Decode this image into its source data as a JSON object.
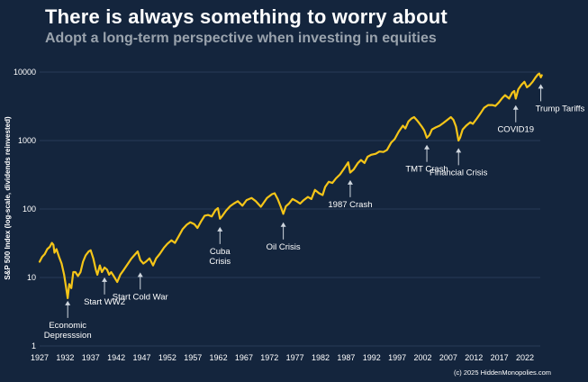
{
  "header": {
    "title": "There is always something to worry about",
    "subtitle": "Adopt a long-term perspective when investing in equities"
  },
  "copyright": "(c) 2025 HiddenMonopolies.com",
  "colors": {
    "background": "#14253d",
    "line": "#f5c518",
    "grid": "#2f4560",
    "text": "#ffffff",
    "subtitle": "#9aa3ad"
  },
  "chart_data": {
    "type": "line",
    "title": "There is always something to worry about",
    "subtitle": "Adopt a long-term perspective when investing in equities",
    "ylabel": "S&P 500 Index (log-scale, dividends reinvested)",
    "xlabel": "",
    "yscale": "log",
    "ylim": [
      1,
      10000
    ],
    "xlim": [
      1927,
      2025
    ],
    "yticks": [
      "1",
      "10",
      "100",
      "1000",
      "10000"
    ],
    "xticks": [
      "1927",
      "1932",
      "1937",
      "1942",
      "1947",
      "1952",
      "1957",
      "1962",
      "1967",
      "1972",
      "1977",
      "1982",
      "1987",
      "1992",
      "1997",
      "2002",
      "2007",
      "2012",
      "2017",
      "2022"
    ],
    "grid": "horizontal",
    "series": [
      {
        "name": "",
        "color": "#f5c518",
        "points": [
          [
            1927.0,
            17
          ],
          [
            1927.5,
            20
          ],
          [
            1928.0,
            22
          ],
          [
            1928.5,
            26
          ],
          [
            1929.0,
            28
          ],
          [
            1929.4,
            32
          ],
          [
            1929.7,
            30
          ],
          [
            1929.9,
            23
          ],
          [
            1930.3,
            26
          ],
          [
            1930.8,
            20
          ],
          [
            1931.3,
            16
          ],
          [
            1931.8,
            11
          ],
          [
            1932.2,
            7
          ],
          [
            1932.5,
            5
          ],
          [
            1932.8,
            8
          ],
          [
            1933.2,
            7
          ],
          [
            1933.6,
            12
          ],
          [
            1934.0,
            12
          ],
          [
            1934.5,
            10.5
          ],
          [
            1935.0,
            12
          ],
          [
            1935.5,
            17
          ],
          [
            1936.0,
            21
          ],
          [
            1936.6,
            24
          ],
          [
            1937.0,
            25
          ],
          [
            1937.5,
            19
          ],
          [
            1938.0,
            13
          ],
          [
            1938.3,
            11
          ],
          [
            1938.8,
            15
          ],
          [
            1939.2,
            12
          ],
          [
            1939.7,
            14
          ],
          [
            1940.2,
            13
          ],
          [
            1940.6,
            11
          ],
          [
            1941.0,
            12
          ],
          [
            1941.5,
            10.5
          ],
          [
            1942.2,
            8.6
          ],
          [
            1942.8,
            11
          ],
          [
            1943.5,
            13
          ],
          [
            1944.3,
            16
          ],
          [
            1945.0,
            19
          ],
          [
            1945.5,
            21
          ],
          [
            1946.2,
            24
          ],
          [
            1946.7,
            18
          ],
          [
            1947.3,
            16
          ],
          [
            1947.8,
            17
          ],
          [
            1948.5,
            19
          ],
          [
            1949.2,
            15
          ],
          [
            1949.8,
            19
          ],
          [
            1950.5,
            22
          ],
          [
            1951.3,
            27
          ],
          [
            1952.0,
            31
          ],
          [
            1952.8,
            35
          ],
          [
            1953.5,
            32
          ],
          [
            1954.3,
            41
          ],
          [
            1955.0,
            51
          ],
          [
            1955.8,
            59
          ],
          [
            1956.5,
            64
          ],
          [
            1957.3,
            60
          ],
          [
            1957.9,
            53
          ],
          [
            1958.6,
            66
          ],
          [
            1959.3,
            80
          ],
          [
            1960.0,
            82
          ],
          [
            1960.7,
            78
          ],
          [
            1961.4,
            96
          ],
          [
            1961.9,
            103
          ],
          [
            1962.3,
            72
          ],
          [
            1962.8,
            80
          ],
          [
            1963.5,
            95
          ],
          [
            1964.3,
            110
          ],
          [
            1965.0,
            120
          ],
          [
            1965.8,
            130
          ],
          [
            1966.7,
            112
          ],
          [
            1967.5,
            135
          ],
          [
            1968.5,
            145
          ],
          [
            1969.3,
            130
          ],
          [
            1970.3,
            108
          ],
          [
            1970.9,
            125
          ],
          [
            1971.5,
            145
          ],
          [
            1972.5,
            165
          ],
          [
            1973.0,
            170
          ],
          [
            1973.6,
            140
          ],
          [
            1974.2,
            108
          ],
          [
            1974.7,
            85
          ],
          [
            1975.2,
            110
          ],
          [
            1975.8,
            120
          ],
          [
            1976.5,
            140
          ],
          [
            1977.3,
            130
          ],
          [
            1978.0,
            120
          ],
          [
            1978.7,
            135
          ],
          [
            1979.5,
            150
          ],
          [
            1980.2,
            140
          ],
          [
            1980.9,
            190
          ],
          [
            1981.7,
            170
          ],
          [
            1982.4,
            160
          ],
          [
            1982.9,
            210
          ],
          [
            1983.6,
            250
          ],
          [
            1984.3,
            240
          ],
          [
            1985.0,
            280
          ],
          [
            1985.8,
            320
          ],
          [
            1986.5,
            380
          ],
          [
            1987.4,
            480
          ],
          [
            1987.8,
            340
          ],
          [
            1988.5,
            380
          ],
          [
            1989.3,
            470
          ],
          [
            1989.9,
            520
          ],
          [
            1990.6,
            470
          ],
          [
            1991.2,
            580
          ],
          [
            1991.9,
            620
          ],
          [
            1992.8,
            640
          ],
          [
            1993.5,
            690
          ],
          [
            1994.3,
            680
          ],
          [
            1995.0,
            730
          ],
          [
            1995.8,
            930
          ],
          [
            1996.5,
            1050
          ],
          [
            1997.3,
            1350
          ],
          [
            1998.1,
            1650
          ],
          [
            1998.6,
            1500
          ],
          [
            1999.2,
            1900
          ],
          [
            1999.8,
            2100
          ],
          [
            2000.3,
            2200
          ],
          [
            2000.8,
            2000
          ],
          [
            2001.3,
            1800
          ],
          [
            2001.8,
            1600
          ],
          [
            2002.3,
            1400
          ],
          [
            2002.8,
            1100
          ],
          [
            2003.3,
            1200
          ],
          [
            2003.8,
            1450
          ],
          [
            2004.5,
            1550
          ],
          [
            2005.3,
            1650
          ],
          [
            2006.0,
            1800
          ],
          [
            2006.8,
            2000
          ],
          [
            2007.5,
            2200
          ],
          [
            2008.0,
            2000
          ],
          [
            2008.5,
            1600
          ],
          [
            2009.0,
            1000
          ],
          [
            2009.3,
            1100
          ],
          [
            2009.8,
            1450
          ],
          [
            2010.5,
            1650
          ],
          [
            2011.3,
            1850
          ],
          [
            2011.8,
            1750
          ],
          [
            2012.6,
            2100
          ],
          [
            2013.3,
            2500
          ],
          [
            2014.0,
            3000
          ],
          [
            2014.8,
            3300
          ],
          [
            2015.6,
            3300
          ],
          [
            2016.2,
            3200
          ],
          [
            2016.9,
            3600
          ],
          [
            2017.6,
            4200
          ],
          [
            2018.1,
            4600
          ],
          [
            2018.9,
            4100
          ],
          [
            2019.5,
            5000
          ],
          [
            2019.9,
            5300
          ],
          [
            2020.2,
            4100
          ],
          [
            2020.7,
            5600
          ],
          [
            2021.3,
            6500
          ],
          [
            2021.9,
            7200
          ],
          [
            2022.4,
            6000
          ],
          [
            2022.9,
            6400
          ],
          [
            2023.5,
            7200
          ],
          [
            2024.0,
            8200
          ],
          [
            2024.5,
            9200
          ],
          [
            2024.8,
            9500
          ],
          [
            2025.1,
            8400
          ],
          [
            2025.3,
            9000
          ]
        ]
      }
    ],
    "annotations": [
      {
        "text": [
          "Economic",
          "Depresssion"
        ],
        "x": 1932.5,
        "y": 5,
        "side": "below"
      },
      {
        "text": [
          "Start WW2"
        ],
        "x": 1939.7,
        "y": 11,
        "side": "below"
      },
      {
        "text": [
          "Start Cold War"
        ],
        "x": 1946.7,
        "y": 13,
        "side": "below"
      },
      {
        "text": [
          "Cuba",
          "Crisis"
        ],
        "x": 1962.3,
        "y": 60,
        "side": "below"
      },
      {
        "text": [
          "Oil Crisis"
        ],
        "x": 1974.7,
        "y": 70,
        "side": "below"
      },
      {
        "text": [
          "1987 Crash"
        ],
        "x": 1987.8,
        "y": 290,
        "side": "below"
      },
      {
        "text": [
          "TMT Crash"
        ],
        "x": 2002.8,
        "y": 950,
        "side": "below"
      },
      {
        "text": [
          "Financial Crisis"
        ],
        "x": 2009.0,
        "y": 850,
        "side": "below"
      },
      {
        "text": [
          "COVID19"
        ],
        "x": 2020.2,
        "y": 3600,
        "side": "below"
      },
      {
        "text": [
          "Trump Tariffs"
        ],
        "x": 2025.1,
        "y": 7300,
        "side": "below"
      }
    ]
  }
}
